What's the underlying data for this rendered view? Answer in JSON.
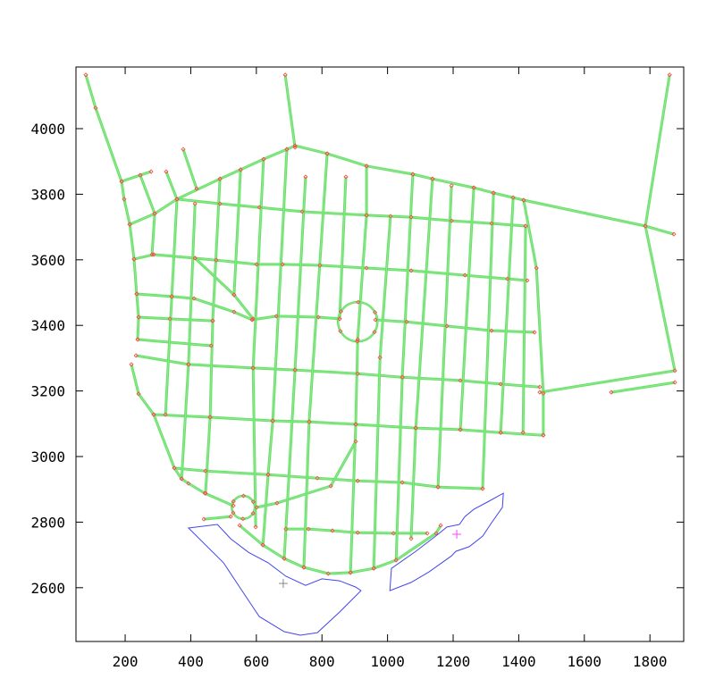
{
  "chart_data": {
    "type": "line",
    "title": "",
    "xlabel": "",
    "ylabel": "",
    "xlim": [
      50,
      1903
    ],
    "ylim": [
      2436,
      4188
    ],
    "xticks": [
      200,
      400,
      600,
      800,
      1000,
      1200,
      1400,
      1600,
      1800
    ],
    "yticks": [
      2600,
      2800,
      3000,
      3200,
      3400,
      3600,
      3800,
      4000
    ],
    "grid": false,
    "colors": {
      "street": "#55ee55",
      "street_core": "#c8c8c8",
      "node": "#ff4444",
      "water": "#4444ee",
      "marker_a": "#888888",
      "marker_b": "#ff44ff"
    },
    "streets": [
      [
        [
          80,
          4164
        ],
        [
          110,
          4063
        ],
        [
          189,
          3839
        ],
        [
          197,
          3785
        ],
        [
          214,
          3708
        ],
        [
          227,
          3602
        ],
        [
          235,
          3496
        ],
        [
          241,
          3425
        ],
        [
          238,
          3357
        ]
      ],
      [
        [
          219,
          3281
        ],
        [
          241,
          3191
        ],
        [
          287,
          3128
        ],
        [
          350,
          2965
        ],
        [
          372,
          2932
        ],
        [
          393,
          2918
        ],
        [
          443,
          2888
        ],
        [
          530,
          2850
        ]
      ],
      [
        [
          688,
          4164
        ],
        [
          718,
          3943
        ]
      ],
      [
        [
          214,
          3708
        ],
        [
          290,
          3741
        ],
        [
          358,
          3785
        ],
        [
          489,
          3847
        ],
        [
          552,
          3875
        ],
        [
          622,
          3907
        ],
        [
          693,
          3937
        ],
        [
          718,
          3948
        ],
        [
          816,
          3924
        ],
        [
          936,
          3886
        ],
        [
          1077,
          3861
        ],
        [
          1137,
          3847
        ],
        [
          1263,
          3820
        ],
        [
          1323,
          3804
        ],
        [
          1415,
          3782
        ],
        [
          1786,
          3703
        ],
        [
          1873,
          3678
        ]
      ],
      [
        [
          189,
          3839
        ],
        [
          246,
          3858
        ],
        [
          279,
          3869
        ]
      ],
      [
        [
          246,
          3858
        ],
        [
          290,
          3741
        ]
      ],
      [
        [
          325,
          3869
        ],
        [
          358,
          3785
        ]
      ],
      [
        [
          377,
          3937
        ],
        [
          418,
          3817
        ]
      ],
      [
        [
          1860,
          4164
        ],
        [
          1786,
          3703
        ],
        [
          1876,
          3262
        ],
        [
          1464,
          3196
        ]
      ],
      [
        [
          1682,
          3196
        ],
        [
          1876,
          3226
        ]
      ],
      [
        [
          1415,
          3782
        ],
        [
          1454,
          3575
        ],
        [
          1475,
          3193
        ],
        [
          1475,
          3065
        ]
      ],
      [
        [
          358,
          3785
        ],
        [
          489,
          3771
        ],
        [
          609,
          3760
        ],
        [
          740,
          3747
        ],
        [
          936,
          3736
        ],
        [
          1072,
          3730
        ],
        [
          1195,
          3719
        ],
        [
          1317,
          3711
        ],
        [
          1421,
          3703
        ]
      ],
      [
        [
          227,
          3602
        ],
        [
          287,
          3616
        ],
        [
          413,
          3605
        ],
        [
          478,
          3599
        ],
        [
          601,
          3586
        ],
        [
          680,
          3586
        ],
        [
          794,
          3583
        ],
        [
          936,
          3575
        ],
        [
          1072,
          3567
        ],
        [
          1236,
          3553
        ],
        [
          1366,
          3542
        ],
        [
          1426,
          3537
        ]
      ],
      [
        [
          235,
          3496
        ],
        [
          342,
          3488
        ],
        [
          410,
          3482
        ],
        [
          532,
          3441
        ],
        [
          587,
          3417
        ]
      ],
      [
        [
          587,
          3417
        ],
        [
          661,
          3428
        ],
        [
          789,
          3425
        ],
        [
          854,
          3420
        ]
      ],
      [
        [
          963,
          3417
        ],
        [
          1058,
          3411
        ],
        [
          1181,
          3398
        ],
        [
          1317,
          3384
        ],
        [
          1448,
          3379
        ]
      ],
      [
        [
          241,
          3425
        ],
        [
          336,
          3420
        ],
        [
          467,
          3414
        ]
      ],
      [
        [
          238,
          3357
        ],
        [
          462,
          3338
        ]
      ],
      [
        [
          413,
          3605
        ],
        [
          532,
          3493
        ],
        [
          590,
          3420
        ]
      ],
      [
        [
          233,
          3308
        ],
        [
          393,
          3281
        ],
        [
          590,
          3270
        ],
        [
          718,
          3264
        ],
        [
          909,
          3253
        ],
        [
          1045,
          3242
        ],
        [
          1222,
          3232
        ],
        [
          1345,
          3221
        ],
        [
          1464,
          3212
        ]
      ],
      [
        [
          287,
          3128
        ],
        [
          459,
          3120
        ],
        [
          650,
          3109
        ],
        [
          761,
          3106
        ],
        [
          903,
          3098
        ],
        [
          1086,
          3087
        ],
        [
          1222,
          3082
        ],
        [
          1345,
          3073
        ],
        [
          1475,
          3065
        ]
      ],
      [
        [
          350,
          2965
        ],
        [
          445,
          2956
        ],
        [
          636,
          2945
        ],
        [
          786,
          2934
        ],
        [
          909,
          2926
        ],
        [
          1045,
          2921
        ],
        [
          1154,
          2907
        ],
        [
          1290,
          2902
        ]
      ],
      [
        [
          601,
          2845
        ],
        [
          663,
          2858
        ],
        [
          827,
          2910
        ],
        [
          903,
          3046
        ]
      ],
      [
        [
          690,
          2779
        ],
        [
          759,
          2779
        ],
        [
          832,
          2774
        ],
        [
          909,
          2768
        ],
        [
          1018,
          2766
        ],
        [
          1121,
          2766
        ]
      ],
      [
        [
          549,
          2790
        ],
        [
          620,
          2730
        ],
        [
          685,
          2689
        ],
        [
          745,
          2662
        ],
        [
          819,
          2643
        ],
        [
          887,
          2646
        ],
        [
          958,
          2659
        ],
        [
          1026,
          2684
        ],
        [
          1148,
          2766
        ],
        [
          1162,
          2790
        ]
      ],
      [
        [
          440,
          2809
        ],
        [
          522,
          2817
        ]
      ],
      [
        [
          290,
          3741
        ],
        [
          282,
          3616
        ]
      ],
      [
        [
          358,
          3785
        ],
        [
          342,
          3488
        ],
        [
          323,
          3128
        ]
      ],
      [
        [
          413,
          3771
        ],
        [
          393,
          3281
        ],
        [
          372,
          2932
        ]
      ],
      [
        [
          489,
          3847
        ],
        [
          467,
          3414
        ],
        [
          459,
          3120
        ],
        [
          445,
          2888
        ]
      ],
      [
        [
          552,
          3875
        ],
        [
          532,
          3493
        ]
      ],
      [
        [
          622,
          3907
        ],
        [
          590,
          3270
        ],
        [
          598,
          2785
        ]
      ],
      [
        [
          693,
          3937
        ],
        [
          650,
          3109
        ],
        [
          636,
          2945
        ],
        [
          620,
          2730
        ]
      ],
      [
        [
          750,
          3853
        ],
        [
          718,
          3264
        ],
        [
          685,
          2689
        ]
      ],
      [
        [
          816,
          3924
        ],
        [
          761,
          3106
        ],
        [
          745,
          2662
        ]
      ],
      [
        [
          873,
          3853
        ],
        [
          854,
          3420
        ]
      ],
      [
        [
          936,
          3886
        ],
        [
          936,
          3736
        ],
        [
          909,
          3357
        ],
        [
          903,
          3098
        ],
        [
          887,
          2646
        ]
      ],
      [
        [
          1009,
          3733
        ],
        [
          977,
          3302
        ],
        [
          958,
          2659
        ]
      ],
      [
        [
          1077,
          3861
        ],
        [
          1045,
          3242
        ],
        [
          1026,
          2684
        ]
      ],
      [
        [
          1137,
          3847
        ],
        [
          1086,
          3087
        ],
        [
          1072,
          2750
        ]
      ],
      [
        [
          1195,
          3826
        ],
        [
          1154,
          2907
        ]
      ],
      [
        [
          1263,
          3820
        ],
        [
          1222,
          3082
        ]
      ],
      [
        [
          1323,
          3804
        ],
        [
          1290,
          2902
        ]
      ],
      [
        [
          1383,
          3790
        ],
        [
          1345,
          3073
        ]
      ],
      [
        [
          1421,
          3703
        ],
        [
          1413,
          3073
        ]
      ]
    ],
    "circles": [
      {
        "center": [
          909,
          3411
        ],
        "radius": 60
      },
      {
        "center": [
          560,
          2845
        ],
        "radius": 35
      }
    ],
    "water": [
      [
        [
          393,
          2782
        ],
        [
          481,
          2793
        ],
        [
          522,
          2749
        ],
        [
          576,
          2708
        ],
        [
          636,
          2676
        ],
        [
          690,
          2635
        ],
        [
          750,
          2607
        ],
        [
          800,
          2627
        ],
        [
          854,
          2621
        ],
        [
          903,
          2602
        ],
        [
          919,
          2591
        ],
        [
          854,
          2526
        ],
        [
          786,
          2463
        ],
        [
          734,
          2455
        ],
        [
          685,
          2466
        ],
        [
          609,
          2512
        ],
        [
          554,
          2594
        ],
        [
          500,
          2676
        ]
      ],
      [
        [
          1007,
          2591
        ],
        [
          1012,
          2659
        ],
        [
          1086,
          2711
        ],
        [
          1154,
          2763
        ],
        [
          1181,
          2785
        ],
        [
          1219,
          2793
        ],
        [
          1236,
          2817
        ],
        [
          1263,
          2839
        ],
        [
          1304,
          2861
        ],
        [
          1353,
          2888
        ],
        [
          1350,
          2845
        ],
        [
          1317,
          2798
        ],
        [
          1290,
          2757
        ],
        [
          1249,
          2725
        ],
        [
          1208,
          2711
        ],
        [
          1195,
          2697
        ],
        [
          1126,
          2648
        ],
        [
          1072,
          2616
        ]
      ]
    ],
    "markers": [
      {
        "point": [
          682,
          2613
        ],
        "color": "#888888"
      },
      {
        "point": [
          1211,
          2763
        ],
        "color": "#ff44ff"
      }
    ]
  }
}
